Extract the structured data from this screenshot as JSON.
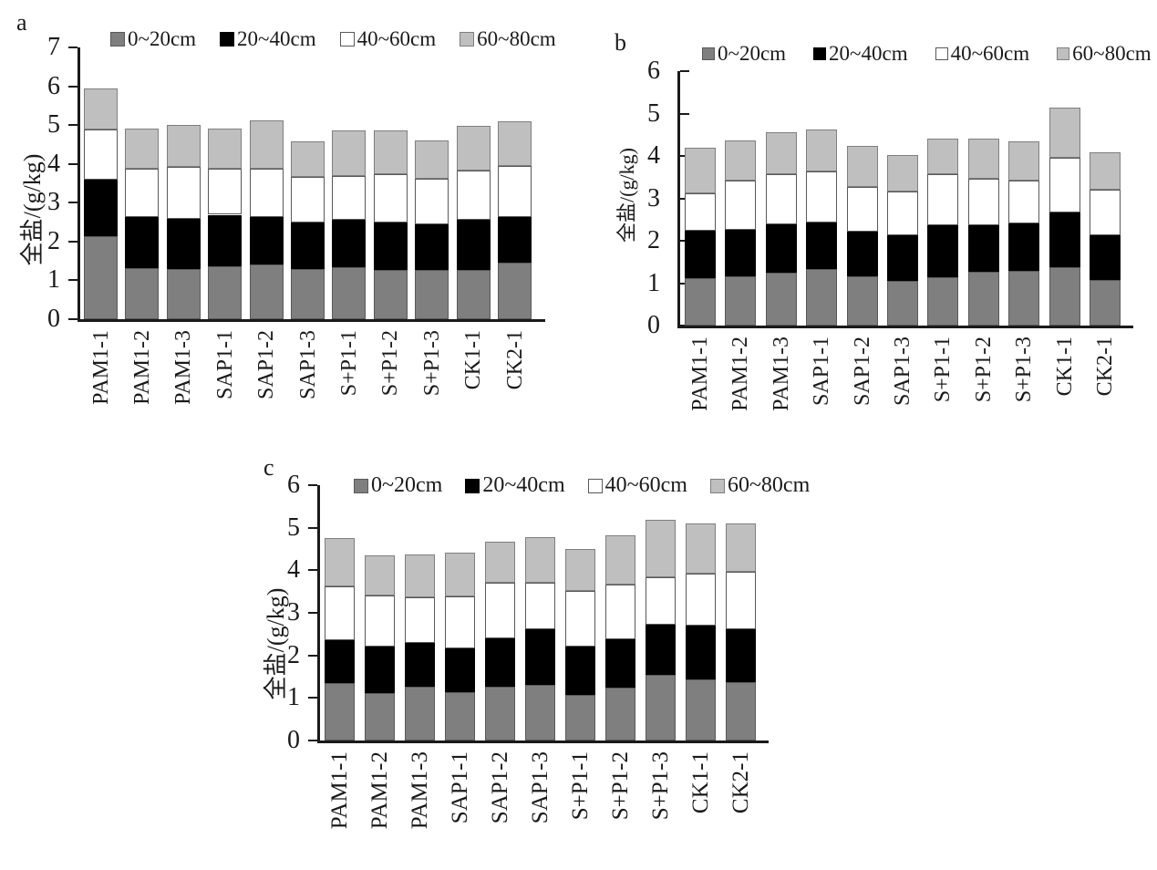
{
  "background": "#ffffff",
  "text_color": "#1a1a1a",
  "series_styles": {
    "0~20cm": {
      "fill": "#7f7f7f",
      "border": "#595959"
    },
    "20~40cm": {
      "fill": "#000000",
      "border": "#000000"
    },
    "40~60cm": {
      "fill": "#ffffff",
      "border": "#595959"
    },
    "60~80cm": {
      "fill": "#bfbfbf",
      "border": "#7f7f7f"
    }
  },
  "chart_data": [
    {
      "type": "bar",
      "stacked": true,
      "panel_label": "a",
      "title": "",
      "xlabel": "",
      "ylabel": "全盐/(g/kg)",
      "ylim": [
        0,
        7
      ],
      "yticks": [
        0,
        1,
        2,
        3,
        4,
        5,
        6,
        7
      ],
      "grid": false,
      "legend_position": "top",
      "categories": [
        "PAM1-1",
        "PAM1-2",
        "PAM1-3",
        "SAP1-1",
        "SAP1-2",
        "SAP1-3",
        "S+P1-1",
        "S+P1-2",
        "S+P1-3",
        "CK1-1",
        "CK2-1"
      ],
      "series": [
        {
          "name": "0~20cm",
          "values": [
            2.13,
            1.32,
            1.29,
            1.37,
            1.41,
            1.3,
            1.35,
            1.26,
            1.28,
            1.28,
            1.46
          ]
        },
        {
          "name": "20~40cm",
          "values": [
            1.47,
            1.3,
            1.29,
            1.32,
            1.21,
            1.18,
            1.21,
            1.22,
            1.17,
            1.29,
            1.18
          ]
        },
        {
          "name": "40~60cm",
          "values": [
            1.28,
            1.26,
            1.34,
            1.19,
            1.26,
            1.19,
            1.14,
            1.26,
            1.17,
            1.27,
            1.3
          ]
        },
        {
          "name": "60~80cm",
          "values": [
            1.06,
            1.04,
            1.08,
            1.04,
            1.24,
            0.91,
            1.16,
            1.12,
            0.99,
            1.14,
            1.16
          ]
        }
      ]
    },
    {
      "type": "bar",
      "stacked": true,
      "panel_label": "b",
      "title": "",
      "xlabel": "",
      "ylabel": "全盐/(g/kg)",
      "ylim": [
        0,
        6
      ],
      "yticks": [
        0,
        1,
        2,
        3,
        4,
        5,
        6
      ],
      "grid": false,
      "legend_position": "top",
      "categories": [
        "PAM1-1",
        "PAM1-2",
        "PAM1-3",
        "SAP1-1",
        "SAP1-2",
        "SAP1-3",
        "S+P1-1",
        "S+P1-2",
        "S+P1-3",
        "CK1-1",
        "CK2-1"
      ],
      "series": [
        {
          "name": "0~20cm",
          "values": [
            1.12,
            1.17,
            1.24,
            1.34,
            1.17,
            1.06,
            1.15,
            1.27,
            1.29,
            1.38,
            1.07
          ]
        },
        {
          "name": "20~40cm",
          "values": [
            1.12,
            1.08,
            1.15,
            1.1,
            1.05,
            1.07,
            1.21,
            1.09,
            1.12,
            1.29,
            1.05
          ]
        },
        {
          "name": "40~60cm",
          "values": [
            0.88,
            1.16,
            1.18,
            1.19,
            1.04,
            1.04,
            1.2,
            1.11,
            1.02,
            1.28,
            1.09
          ]
        },
        {
          "name": "60~80cm",
          "values": [
            1.08,
            0.95,
            0.98,
            0.99,
            0.97,
            0.85,
            0.84,
            0.93,
            0.92,
            1.18,
            0.87
          ]
        }
      ]
    },
    {
      "type": "bar",
      "stacked": true,
      "panel_label": "c",
      "title": "",
      "xlabel": "",
      "ylabel": "全盐/(g/kg)",
      "ylim": [
        0,
        6
      ],
      "yticks": [
        0,
        1,
        2,
        3,
        4,
        5,
        6
      ],
      "grid": false,
      "legend_position": "top",
      "categories": [
        "PAM1-1",
        "PAM1-2",
        "PAM1-3",
        "SAP1-1",
        "SAP1-2",
        "SAP1-3",
        "S+P1-1",
        "S+P1-2",
        "S+P1-3",
        "CK1-1",
        "CK2-1"
      ],
      "series": [
        {
          "name": "0~20cm",
          "values": [
            1.34,
            1.11,
            1.26,
            1.13,
            1.26,
            1.31,
            1.07,
            1.24,
            1.54,
            1.43,
            1.38
          ]
        },
        {
          "name": "20~40cm",
          "values": [
            1.02,
            1.1,
            1.03,
            1.04,
            1.14,
            1.31,
            1.14,
            1.14,
            1.18,
            1.26,
            1.23
          ]
        },
        {
          "name": "40~60cm",
          "values": [
            1.27,
            1.19,
            1.07,
            1.21,
            1.31,
            1.09,
            1.3,
            1.29,
            1.11,
            1.24,
            1.35
          ]
        },
        {
          "name": "60~80cm",
          "values": [
            1.12,
            0.94,
            1.02,
            1.04,
            0.96,
            1.07,
            0.98,
            1.15,
            1.35,
            1.17,
            1.14
          ]
        }
      ]
    }
  ]
}
